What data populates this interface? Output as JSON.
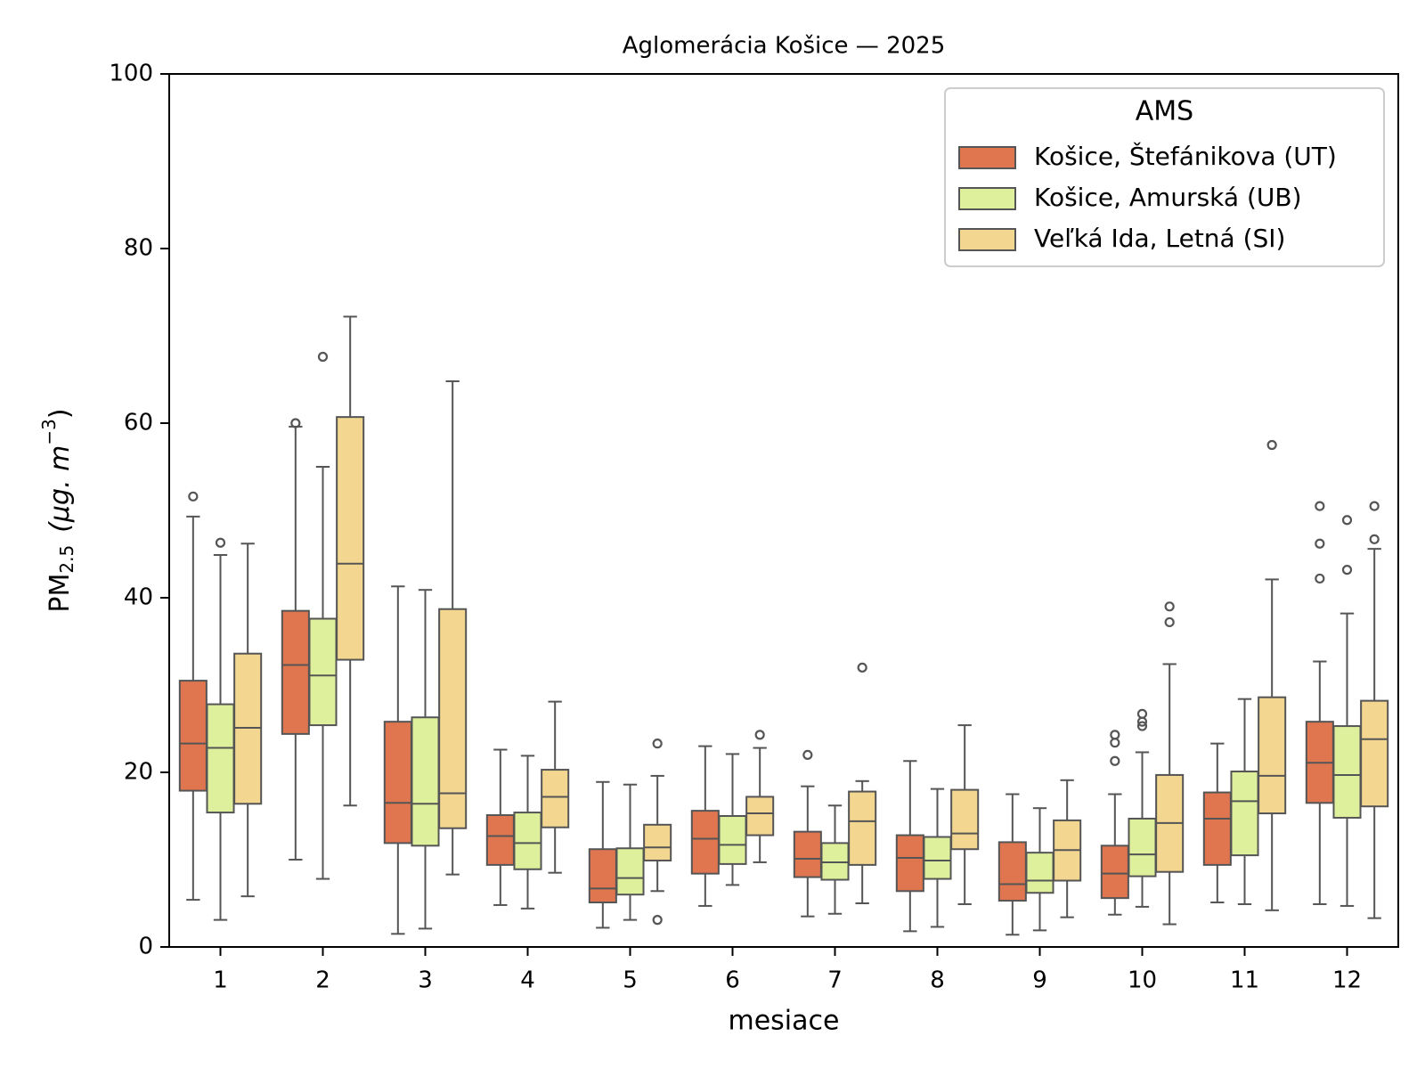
{
  "chart_data": {
    "type": "box",
    "title": "Aglomerácia Košice —  2025",
    "xlabel": "mesiace",
    "ylabel_main": "PM",
    "ylabel_sub": "2.5",
    "ylabel_units": "(μg. m",
    "ylabel_sup": "−3",
    "ylabel_close": ")",
    "ylim": [
      0,
      100
    ],
    "yticks": [
      0,
      20,
      40,
      60,
      80,
      100
    ],
    "categories": [
      "1",
      "2",
      "3",
      "4",
      "5",
      "6",
      "7",
      "8",
      "9",
      "10",
      "11",
      "12"
    ],
    "legend": {
      "title": "AMS",
      "position": "top-right"
    },
    "series": [
      {
        "name": "Košice, Štefánikova (UT)",
        "color": "#e07650",
        "boxes": [
          {
            "whislo": 5.4,
            "q1": 17.9,
            "med": 23.3,
            "q3": 30.5,
            "whishi": 49.3,
            "fliers": [
              51.6
            ]
          },
          {
            "whislo": 10.0,
            "q1": 24.4,
            "med": 32.3,
            "q3": 38.5,
            "whishi": 59.6,
            "fliers": [
              60.0
            ]
          },
          {
            "whislo": 1.5,
            "q1": 11.9,
            "med": 16.5,
            "q3": 25.8,
            "whishi": 41.3,
            "fliers": []
          },
          {
            "whislo": 4.8,
            "q1": 9.4,
            "med": 12.7,
            "q3": 15.1,
            "whishi": 22.6,
            "fliers": []
          },
          {
            "whislo": 2.2,
            "q1": 5.1,
            "med": 6.7,
            "q3": 11.2,
            "whishi": 18.9,
            "fliers": []
          },
          {
            "whislo": 4.7,
            "q1": 8.4,
            "med": 12.4,
            "q3": 15.6,
            "whishi": 23.0,
            "fliers": []
          },
          {
            "whislo": 3.5,
            "q1": 8.0,
            "med": 10.1,
            "q3": 13.2,
            "whishi": 18.4,
            "fliers": [
              22.0
            ]
          },
          {
            "whislo": 1.8,
            "q1": 6.4,
            "med": 10.2,
            "q3": 12.8,
            "whishi": 21.3,
            "fliers": []
          },
          {
            "whislo": 1.4,
            "q1": 5.3,
            "med": 7.2,
            "q3": 12.0,
            "whishi": 17.5,
            "fliers": []
          },
          {
            "whislo": 3.7,
            "q1": 5.6,
            "med": 8.4,
            "q3": 11.6,
            "whishi": 17.5,
            "fliers": [
              21.3,
              23.4,
              24.3
            ]
          },
          {
            "whislo": 5.1,
            "q1": 9.4,
            "med": 14.7,
            "q3": 17.7,
            "whishi": 23.3,
            "fliers": []
          },
          {
            "whislo": 4.9,
            "q1": 16.5,
            "med": 21.1,
            "q3": 25.8,
            "whishi": 32.7,
            "fliers": [
              42.2,
              46.2,
              50.5
            ]
          }
        ]
      },
      {
        "name": "Košice, Amurská (UB)",
        "color": "#def09b",
        "boxes": [
          {
            "whislo": 3.1,
            "q1": 15.4,
            "med": 22.8,
            "q3": 27.8,
            "whishi": 44.9,
            "fliers": [
              46.3
            ]
          },
          {
            "whislo": 7.8,
            "q1": 25.4,
            "med": 31.1,
            "q3": 37.6,
            "whishi": 55.0,
            "fliers": [
              67.6
            ]
          },
          {
            "whislo": 2.1,
            "q1": 11.6,
            "med": 16.4,
            "q3": 26.3,
            "whishi": 40.9,
            "fliers": []
          },
          {
            "whislo": 4.4,
            "q1": 8.9,
            "med": 11.9,
            "q3": 15.4,
            "whishi": 21.9,
            "fliers": []
          },
          {
            "whislo": 3.1,
            "q1": 6.0,
            "med": 7.9,
            "q3": 11.3,
            "whishi": 18.6,
            "fliers": []
          },
          {
            "whislo": 7.1,
            "q1": 9.5,
            "med": 11.7,
            "q3": 15.0,
            "whishi": 22.1,
            "fliers": []
          },
          {
            "whislo": 3.8,
            "q1": 7.7,
            "med": 9.7,
            "q3": 11.9,
            "whishi": 16.2,
            "fliers": []
          },
          {
            "whislo": 2.3,
            "q1": 7.8,
            "med": 9.9,
            "q3": 12.6,
            "whishi": 18.1,
            "fliers": []
          },
          {
            "whislo": 1.9,
            "q1": 6.2,
            "med": 7.6,
            "q3": 10.8,
            "whishi": 15.9,
            "fliers": []
          },
          {
            "whislo": 4.6,
            "q1": 8.1,
            "med": 10.6,
            "q3": 14.7,
            "whishi": 22.3,
            "fliers": [
              25.3,
              25.8,
              26.7
            ]
          },
          {
            "whislo": 4.9,
            "q1": 10.5,
            "med": 16.7,
            "q3": 20.1,
            "whishi": 28.4,
            "fliers": []
          },
          {
            "whislo": 4.7,
            "q1": 14.8,
            "med": 19.7,
            "q3": 25.3,
            "whishi": 38.2,
            "fliers": [
              43.2,
              48.9
            ]
          }
        ]
      },
      {
        "name": "Veľká Ida, Letná (SI)",
        "color": "#f3d68f",
        "boxes": [
          {
            "whislo": 5.8,
            "q1": 16.4,
            "med": 25.1,
            "q3": 33.6,
            "whishi": 46.2,
            "fliers": []
          },
          {
            "whislo": 16.2,
            "q1": 32.9,
            "med": 43.9,
            "q3": 60.7,
            "whishi": 72.2,
            "fliers": []
          },
          {
            "whislo": 8.3,
            "q1": 13.6,
            "med": 17.6,
            "q3": 38.7,
            "whishi": 64.8,
            "fliers": []
          },
          {
            "whislo": 8.5,
            "q1": 13.7,
            "med": 17.2,
            "q3": 20.3,
            "whishi": 28.1,
            "fliers": []
          },
          {
            "whislo": 6.4,
            "q1": 9.9,
            "med": 11.4,
            "q3": 14.0,
            "whishi": 19.6,
            "fliers": [
              3.1,
              23.3
            ]
          },
          {
            "whislo": 9.7,
            "q1": 12.8,
            "med": 15.3,
            "q3": 17.2,
            "whishi": 22.8,
            "fliers": [
              24.3
            ]
          },
          {
            "whislo": 5.0,
            "q1": 9.4,
            "med": 14.4,
            "q3": 17.8,
            "whishi": 19.0,
            "fliers": [
              32.0
            ]
          },
          {
            "whislo": 4.9,
            "q1": 11.2,
            "med": 13.0,
            "q3": 18.0,
            "whishi": 25.4,
            "fliers": []
          },
          {
            "whislo": 3.4,
            "q1": 7.6,
            "med": 11.1,
            "q3": 14.5,
            "whishi": 19.1,
            "fliers": []
          },
          {
            "whislo": 2.6,
            "q1": 8.6,
            "med": 14.2,
            "q3": 19.7,
            "whishi": 32.4,
            "fliers": [
              37.2,
              39.0
            ]
          },
          {
            "whislo": 4.2,
            "q1": 15.3,
            "med": 19.6,
            "q3": 28.6,
            "whishi": 42.1,
            "fliers": [
              57.5
            ]
          },
          {
            "whislo": 3.3,
            "q1": 16.1,
            "med": 23.8,
            "q3": 28.2,
            "whishi": 45.6,
            "fliers": [
              46.7,
              50.5
            ]
          }
        ]
      }
    ]
  }
}
